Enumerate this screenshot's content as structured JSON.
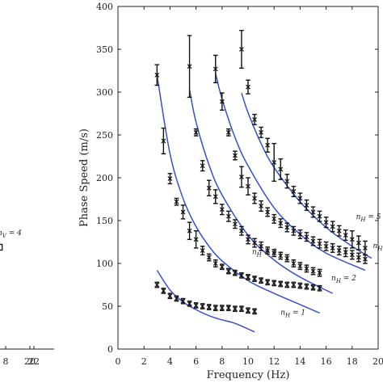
{
  "chart_data": [
    {
      "type": "scatter",
      "panel": "left",
      "xlabel": "",
      "ylabel": "",
      "xlim": [
        4.6,
        22
      ],
      "x_ticks": [
        8,
        20,
        22
      ],
      "x_tick_labels": [
        "8",
        "20",
        "22"
      ],
      "annotations": [
        {
          "text": "n_V = 4",
          "x": 0,
          "y": 0
        }
      ],
      "series": [
        {
          "marker": "square",
          "points": [
            {
              "x": 4.9,
              "y": 0
            }
          ]
        }
      ]
    },
    {
      "type": "scatter",
      "panel": "right",
      "xlabel": "Frequency (Hz)",
      "ylabel": "Phase Speed (m/s)",
      "xlim": [
        0,
        20
      ],
      "ylim": [
        0,
        400
      ],
      "x_ticks": [
        0,
        2,
        4,
        6,
        8,
        10,
        12,
        14,
        16,
        18,
        20
      ],
      "y_ticks": [
        0,
        50,
        100,
        150,
        200,
        250,
        300,
        350,
        400
      ],
      "x_tick_labels": [
        "0",
        "2",
        "4",
        "6",
        "8",
        "10",
        "12",
        "14",
        "16",
        "18",
        "20"
      ],
      "y_tick_labels": [
        "0",
        "50",
        "100",
        "150",
        "200",
        "250",
        "300",
        "350",
        "400"
      ],
      "annotations": [
        {
          "text": "n_H = 1",
          "x": 12.5,
          "y": 40
        },
        {
          "text": "n_H = 2",
          "x": 16.4,
          "y": 80
        },
        {
          "text": "n_H = 3",
          "x": 10.3,
          "y": 111
        },
        {
          "text": "n_H = 5",
          "x": 18.3,
          "y": 152
        },
        {
          "text": "n_H =",
          "x": 19.6,
          "y": 118
        }
      ],
      "model_curves": [
        {
          "x": [
            3.0,
            4,
            5,
            6,
            7,
            8,
            9,
            10.5
          ],
          "y": [
            92,
            69,
            55,
            46,
            39,
            34,
            30,
            20
          ]
        },
        {
          "x": [
            3.0,
            4,
            5,
            6,
            7,
            8,
            10,
            12,
            14,
            15.5
          ],
          "y": [
            320,
            228,
            176,
            143,
            120,
            103,
            80,
            65,
            52,
            42
          ]
        },
        {
          "x": [
            5.5,
            6,
            7,
            8,
            10,
            12,
            14,
            16.5
          ],
          "y": [
            303,
            265,
            215,
            180,
            133,
            104,
            84,
            65
          ]
        },
        {
          "x": [
            7.5,
            8,
            9,
            10,
            12,
            14,
            16,
            19
          ],
          "y": [
            322,
            292,
            247,
            214,
            165,
            134,
            112,
            92
          ]
        },
        {
          "x": [
            9.5,
            10,
            11,
            12,
            14,
            16,
            18,
            19.5
          ],
          "y": [
            299,
            276,
            240,
            212,
            172,
            142,
            120,
            106
          ]
        }
      ],
      "series": [
        {
          "marker": "x",
          "points": [
            {
              "x": 3.0,
              "y": 75,
              "err": 3
            },
            {
              "x": 3.5,
              "y": 68,
              "err": 3
            },
            {
              "x": 4.0,
              "y": 62,
              "err": 3
            },
            {
              "x": 4.5,
              "y": 59,
              "err": 3
            },
            {
              "x": 5.0,
              "y": 56,
              "err": 3
            },
            {
              "x": 5.5,
              "y": 53,
              "err": 3
            },
            {
              "x": 6.0,
              "y": 51,
              "err": 3
            },
            {
              "x": 6.5,
              "y": 50,
              "err": 3
            },
            {
              "x": 7.0,
              "y": 49,
              "err": 3
            },
            {
              "x": 7.5,
              "y": 48,
              "err": 3
            },
            {
              "x": 8.0,
              "y": 48,
              "err": 3
            },
            {
              "x": 8.5,
              "y": 48,
              "err": 3
            },
            {
              "x": 9.0,
              "y": 47,
              "err": 3
            },
            {
              "x": 9.5,
              "y": 47,
              "err": 3
            },
            {
              "x": 10.0,
              "y": 45,
              "err": 3
            },
            {
              "x": 10.5,
              "y": 44,
              "err": 3
            }
          ]
        },
        {
          "marker": "x",
          "points": [
            {
              "x": 3.0,
              "y": 320,
              "err": 12
            },
            {
              "x": 3.5,
              "y": 243,
              "err": 15
            },
            {
              "x": 4.0,
              "y": 199,
              "err": 6
            },
            {
              "x": 4.5,
              "y": 172,
              "err": 4
            },
            {
              "x": 5.0,
              "y": 160,
              "err": 8
            },
            {
              "x": 5.5,
              "y": 138,
              "err": 10
            },
            {
              "x": 6.0,
              "y": 128,
              "err": 10
            },
            {
              "x": 6.5,
              "y": 115,
              "err": 5
            },
            {
              "x": 7.0,
              "y": 107,
              "err": 4
            },
            {
              "x": 7.5,
              "y": 100,
              "err": 4
            },
            {
              "x": 8.0,
              "y": 96,
              "err": 3
            },
            {
              "x": 8.5,
              "y": 91,
              "err": 3
            },
            {
              "x": 9.0,
              "y": 89,
              "err": 3
            },
            {
              "x": 9.5,
              "y": 86,
              "err": 3
            },
            {
              "x": 10.0,
              "y": 84,
              "err": 3
            },
            {
              "x": 10.5,
              "y": 82,
              "err": 3
            },
            {
              "x": 11.0,
              "y": 80,
              "err": 3
            },
            {
              "x": 11.5,
              "y": 78,
              "err": 3
            },
            {
              "x": 12.0,
              "y": 77,
              "err": 3
            },
            {
              "x": 12.5,
              "y": 76,
              "err": 3
            },
            {
              "x": 13.0,
              "y": 75,
              "err": 3
            },
            {
              "x": 13.5,
              "y": 75,
              "err": 3
            },
            {
              "x": 14.0,
              "y": 74,
              "err": 3
            },
            {
              "x": 14.5,
              "y": 73,
              "err": 3
            },
            {
              "x": 15.0,
              "y": 72,
              "err": 3
            },
            {
              "x": 15.5,
              "y": 71,
              "err": 3
            }
          ]
        },
        {
          "marker": "x",
          "points": [
            {
              "x": 5.5,
              "y": 330,
              "err": 36
            },
            {
              "x": 6.0,
              "y": 253,
              "err": 4
            },
            {
              "x": 6.5,
              "y": 214,
              "err": 6
            },
            {
              "x": 7.0,
              "y": 188,
              "err": 9
            },
            {
              "x": 7.5,
              "y": 178,
              "err": 8
            },
            {
              "x": 8.0,
              "y": 163,
              "err": 6
            },
            {
              "x": 8.5,
              "y": 155,
              "err": 6
            },
            {
              "x": 9.0,
              "y": 146,
              "err": 5
            },
            {
              "x": 9.5,
              "y": 138,
              "err": 5
            },
            {
              "x": 10.0,
              "y": 128,
              "err": 5
            },
            {
              "x": 10.5,
              "y": 124,
              "err": 5
            },
            {
              "x": 11.0,
              "y": 120,
              "err": 5
            },
            {
              "x": 11.5,
              "y": 115,
              "err": 4
            },
            {
              "x": 12.0,
              "y": 112,
              "err": 4
            },
            {
              "x": 12.5,
              "y": 109,
              "err": 4
            },
            {
              "x": 13.0,
              "y": 106,
              "err": 4
            },
            {
              "x": 13.5,
              "y": 100,
              "err": 4
            },
            {
              "x": 14.0,
              "y": 97,
              "err": 4
            },
            {
              "x": 14.5,
              "y": 94,
              "err": 4
            },
            {
              "x": 15.0,
              "y": 91,
              "err": 4
            },
            {
              "x": 15.5,
              "y": 89,
              "err": 4
            }
          ]
        },
        {
          "marker": "x",
          "points": [
            {
              "x": 7.5,
              "y": 327,
              "err": 16
            },
            {
              "x": 8.0,
              "y": 289,
              "err": 10
            },
            {
              "x": 8.5,
              "y": 253,
              "err": 4
            },
            {
              "x": 9.0,
              "y": 226,
              "err": 5
            },
            {
              "x": 9.5,
              "y": 201,
              "err": 12
            },
            {
              "x": 10.0,
              "y": 190,
              "err": 10
            },
            {
              "x": 10.5,
              "y": 176,
              "err": 6
            },
            {
              "x": 11.0,
              "y": 167,
              "err": 6
            },
            {
              "x": 11.5,
              "y": 160,
              "err": 5
            },
            {
              "x": 12.0,
              "y": 152,
              "err": 5
            },
            {
              "x": 12.5,
              "y": 147,
              "err": 5
            },
            {
              "x": 13.0,
              "y": 142,
              "err": 5
            },
            {
              "x": 13.5,
              "y": 138,
              "err": 5
            },
            {
              "x": 14.0,
              "y": 134,
              "err": 5
            },
            {
              "x": 14.5,
              "y": 131,
              "err": 5
            },
            {
              "x": 15.0,
              "y": 126,
              "err": 5
            },
            {
              "x": 15.5,
              "y": 123,
              "err": 5
            },
            {
              "x": 16.0,
              "y": 120,
              "err": 5
            },
            {
              "x": 16.5,
              "y": 118,
              "err": 5
            },
            {
              "x": 17.0,
              "y": 115,
              "err": 5
            },
            {
              "x": 17.5,
              "y": 113,
              "err": 5
            },
            {
              "x": 18.0,
              "y": 110,
              "err": 5
            },
            {
              "x": 18.5,
              "y": 107,
              "err": 5
            },
            {
              "x": 19.0,
              "y": 105,
              "err": 5
            }
          ]
        },
        {
          "marker": "x",
          "points": [
            {
              "x": 9.5,
              "y": 350,
              "err": 22
            },
            {
              "x": 10.0,
              "y": 306,
              "err": 8
            },
            {
              "x": 10.5,
              "y": 268,
              "err": 6
            },
            {
              "x": 11.0,
              "y": 253,
              "err": 6
            },
            {
              "x": 11.5,
              "y": 238,
              "err": 8
            },
            {
              "x": 12.0,
              "y": 218,
              "err": 22
            },
            {
              "x": 12.5,
              "y": 210,
              "err": 12
            },
            {
              "x": 13.0,
              "y": 196,
              "err": 8
            },
            {
              "x": 13.5,
              "y": 184,
              "err": 6
            },
            {
              "x": 14.0,
              "y": 176,
              "err": 6
            },
            {
              "x": 14.5,
              "y": 168,
              "err": 6
            },
            {
              "x": 15.0,
              "y": 160,
              "err": 6
            },
            {
              "x": 15.5,
              "y": 155,
              "err": 6
            },
            {
              "x": 16.0,
              "y": 148,
              "err": 6
            },
            {
              "x": 16.5,
              "y": 143,
              "err": 6
            },
            {
              "x": 17.0,
              "y": 138,
              "err": 6
            },
            {
              "x": 17.5,
              "y": 133,
              "err": 6
            },
            {
              "x": 18.0,
              "y": 128,
              "err": 10
            },
            {
              "x": 18.5,
              "y": 124,
              "err": 8
            },
            {
              "x": 19.0,
              "y": 118,
              "err": 8
            }
          ]
        }
      ]
    }
  ]
}
